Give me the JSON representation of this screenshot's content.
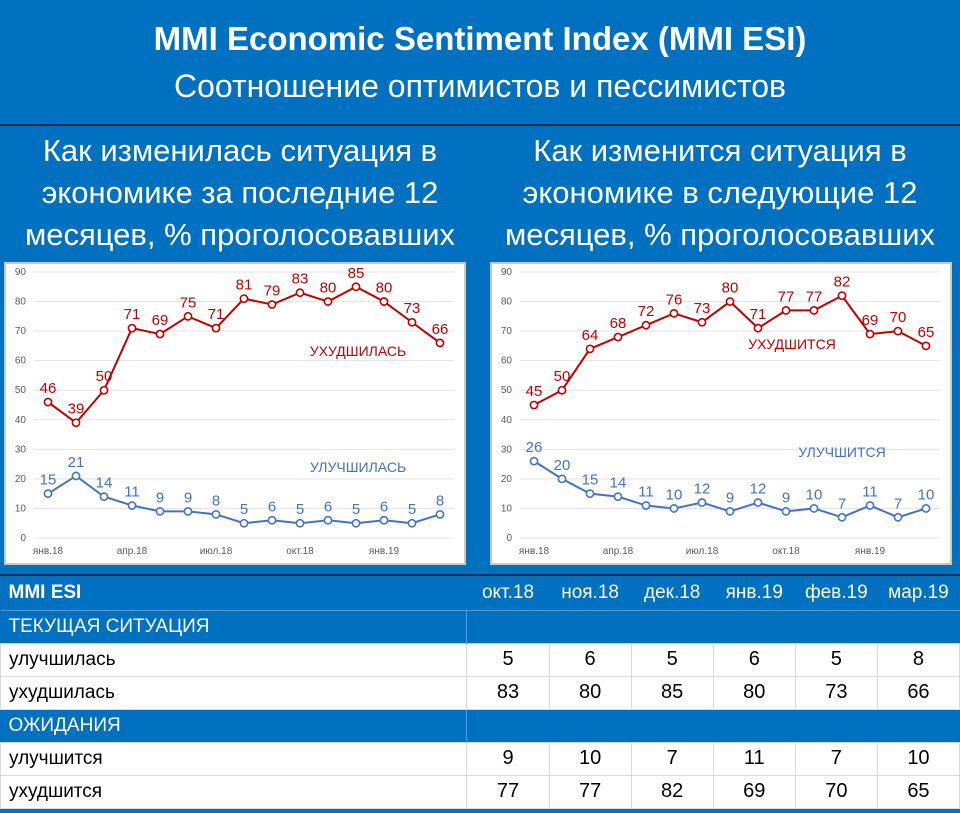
{
  "header": {
    "title": "MMI Economic Sentiment Index (MMI ESI)",
    "subtitle": "Соотношение оптимистов и пессимистов"
  },
  "panels": [
    {
      "title_lines": [
        "Как изменилась ситуация в",
        "экономике за последние 12",
        "месяцев, % проголосовавших"
      ]
    },
    {
      "title_lines": [
        "Как изменится ситуация в",
        "экономике в следующие 12",
        "месяцев, % проголосовавших"
      ]
    }
  ],
  "chart_data": [
    {
      "type": "line",
      "x": [
        "янв.18",
        "фев.18",
        "мар.18",
        "апр.18",
        "май.18",
        "июн.18",
        "июл.18",
        "авг.18",
        "сен.18",
        "окт.18",
        "ноя.18",
        "дек.18",
        "янв.19",
        "фев.19",
        "мар.19"
      ],
      "x_tick_labels": [
        "янв.18",
        "апр.18",
        "июл.18",
        "окт.18",
        "янв.19"
      ],
      "ylim": [
        0,
        90
      ],
      "y_ticks": [
        0,
        10,
        20,
        30,
        40,
        50,
        60,
        70,
        80,
        90
      ],
      "grid": true,
      "series": [
        {
          "name": "УХУДШИЛАСЬ",
          "color": "#C00000",
          "values": [
            46,
            39,
            50,
            71,
            69,
            75,
            71,
            81,
            79,
            83,
            80,
            85,
            80,
            73,
            66
          ]
        },
        {
          "name": "УЛУЧШИЛАСЬ",
          "color": "#4472C4",
          "values": [
            15,
            21,
            14,
            11,
            9,
            9,
            8,
            5,
            6,
            5,
            6,
            5,
            6,
            5,
            8
          ]
        }
      ]
    },
    {
      "type": "line",
      "x": [
        "янв.18",
        "фев.18",
        "мар.18",
        "апр.18",
        "май.18",
        "июн.18",
        "июл.18",
        "авг.18",
        "сен.18",
        "окт.18",
        "ноя.18",
        "дек.18",
        "янв.19",
        "фев.19",
        "мар.19"
      ],
      "x_tick_labels": [
        "янв.18",
        "апр.18",
        "июл.18",
        "окт.18",
        "янв.19"
      ],
      "ylim": [
        0,
        90
      ],
      "y_ticks": [
        0,
        10,
        20,
        30,
        40,
        50,
        60,
        70,
        80,
        90
      ],
      "grid": true,
      "series": [
        {
          "name": "УХУДШИТСЯ",
          "color": "#C00000",
          "values": [
            45,
            50,
            64,
            68,
            72,
            76,
            73,
            80,
            71,
            77,
            77,
            82,
            69,
            70,
            65
          ]
        },
        {
          "name": "УЛУЧШИТСЯ",
          "color": "#4472C4",
          "values": [
            26,
            20,
            15,
            14,
            11,
            10,
            12,
            9,
            12,
            9,
            10,
            7,
            11,
            7,
            10
          ]
        }
      ]
    }
  ],
  "table": {
    "title": "MMI ESI",
    "months": [
      "окт.18",
      "ноя.18",
      "дек.18",
      "янв.19",
      "фев.19",
      "мар.19"
    ],
    "sections": [
      {
        "label": "ТЕКУЩАЯ СИТУАЦИЯ",
        "rows": [
          {
            "label": "улучшилась",
            "values": [
              5,
              6,
              5,
              6,
              5,
              8
            ]
          },
          {
            "label": "ухудшилась",
            "values": [
              83,
              80,
              85,
              80,
              73,
              66
            ]
          }
        ]
      },
      {
        "label": "ОЖИДАНИЯ",
        "rows": [
          {
            "label": "улучшится",
            "values": [
              9,
              10,
              7,
              11,
              7,
              10
            ]
          },
          {
            "label": "ухудшится",
            "values": [
              77,
              77,
              82,
              69,
              70,
              65
            ]
          }
        ]
      }
    ]
  }
}
